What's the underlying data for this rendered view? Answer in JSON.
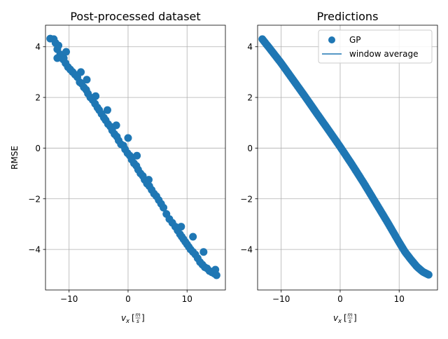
{
  "chart_data": [
    {
      "type": "scatter",
      "title": "Post-processed dataset",
      "xlabel_var": "v",
      "xlabel_sub": "x",
      "xlabel_unit_num": "m",
      "xlabel_unit_den": "s",
      "ylabel": "RMSE",
      "xlim": [
        -14,
        16.5
      ],
      "ylim": [
        -5.6,
        4.85
      ],
      "xticks": [
        -10,
        0,
        10
      ],
      "xtick_labels": [
        "−10",
        "0",
        "10"
      ],
      "yticks": [
        -4,
        -2,
        0,
        2,
        4
      ],
      "ytick_labels": [
        "−4",
        "−2",
        "0",
        "2",
        "4"
      ],
      "grid": true,
      "color": "#1f77b4",
      "series": [
        {
          "kind": "points",
          "x": [
            -13.2,
            -12.6,
            -12.0,
            -12.3,
            -11.5,
            -11.0,
            -10.6,
            -10.2,
            -11.8,
            -10.9,
            -9.8,
            -9.4,
            -9.0,
            -8.6,
            -8.2,
            -7.9,
            -7.5,
            -7.1,
            -6.8,
            -6.4,
            -6.0,
            -5.6,
            -5.2,
            -4.9,
            -4.5,
            -4.1,
            -3.8,
            -3.4,
            -3.0,
            -2.7,
            -2.3,
            -1.9,
            -1.6,
            -1.2,
            -0.8,
            -0.5,
            -0.1,
            0.3,
            0.6,
            1.0,
            1.4,
            1.7,
            2.1,
            2.5,
            2.8,
            3.2,
            3.6,
            4.0,
            4.4,
            4.8,
            5.2,
            5.6,
            6.0,
            6.5,
            7.0,
            7.5,
            8.0,
            8.4,
            8.8,
            9.1,
            9.4,
            9.7,
            10.0,
            10.3,
            10.6,
            11.0,
            11.4,
            11.8,
            12.2,
            12.6,
            13.0,
            13.4,
            13.8,
            14.2,
            14.6,
            15.0,
            -12.0,
            -10.5,
            -8.0,
            -7.0,
            -5.5,
            -3.5,
            -2.0,
            0.0,
            1.5,
            3.5,
            9.0,
            11.0,
            12.8,
            14.8
          ],
          "y": [
            4.32,
            4.3,
            3.9,
            4.15,
            3.7,
            3.5,
            3.35,
            3.2,
            4.05,
            3.55,
            3.1,
            3.0,
            2.9,
            2.8,
            2.6,
            2.55,
            2.4,
            2.3,
            2.15,
            2.0,
            1.9,
            1.75,
            1.6,
            1.5,
            1.35,
            1.2,
            1.1,
            0.95,
            0.85,
            0.7,
            0.55,
            0.45,
            0.3,
            0.15,
            0.1,
            -0.05,
            -0.2,
            -0.3,
            -0.45,
            -0.6,
            -0.7,
            -0.85,
            -1.0,
            -1.1,
            -1.25,
            -1.4,
            -1.5,
            -1.65,
            -1.8,
            -1.9,
            -2.05,
            -2.2,
            -2.35,
            -2.6,
            -2.8,
            -2.95,
            -3.1,
            -3.25,
            -3.4,
            -3.5,
            -3.6,
            -3.7,
            -3.8,
            -3.9,
            -4.0,
            -4.1,
            -4.2,
            -4.35,
            -4.5,
            -4.6,
            -4.7,
            -4.75,
            -4.85,
            -4.9,
            -4.95,
            -5.02,
            3.55,
            3.8,
            3.0,
            2.7,
            2.05,
            1.5,
            0.9,
            0.4,
            -0.3,
            -1.25,
            -3.1,
            -3.5,
            -4.1,
            -4.8
          ]
        }
      ]
    },
    {
      "type": "scatter",
      "title": "Predictions",
      "xlabel_var": "v",
      "xlabel_sub": "x",
      "xlabel_unit_num": "m",
      "xlabel_unit_den": "s",
      "ylabel": "",
      "xlim": [
        -14,
        16.5
      ],
      "ylim": [
        -5.6,
        4.85
      ],
      "xticks": [
        -10,
        0,
        10
      ],
      "xtick_labels": [
        "−10",
        "0",
        "10"
      ],
      "yticks": [
        -4,
        -2,
        0,
        2,
        4
      ],
      "ytick_labels": [
        "−4",
        "−2",
        "0",
        "2",
        "4"
      ],
      "grid": true,
      "color": "#1f77b4",
      "legend": {
        "placement": "top-right",
        "entries": [
          {
            "name": "GP",
            "marker": "circle"
          },
          {
            "name": "window average",
            "marker": "line"
          }
        ]
      },
      "series": [
        {
          "name": "GP",
          "kind": "curve",
          "x": [
            -13.2,
            -12.0,
            -10.0,
            -8.0,
            -6.0,
            -4.0,
            -2.0,
            0.0,
            2.0,
            4.0,
            6.0,
            8.0,
            10.0,
            11.0,
            12.0,
            13.0,
            14.0,
            15.0
          ],
          "y": [
            4.3,
            3.95,
            3.35,
            2.7,
            2.05,
            1.38,
            0.72,
            0.05,
            -0.65,
            -1.38,
            -2.15,
            -2.92,
            -3.72,
            -4.1,
            -4.4,
            -4.68,
            -4.88,
            -5.0
          ]
        }
      ]
    }
  ]
}
